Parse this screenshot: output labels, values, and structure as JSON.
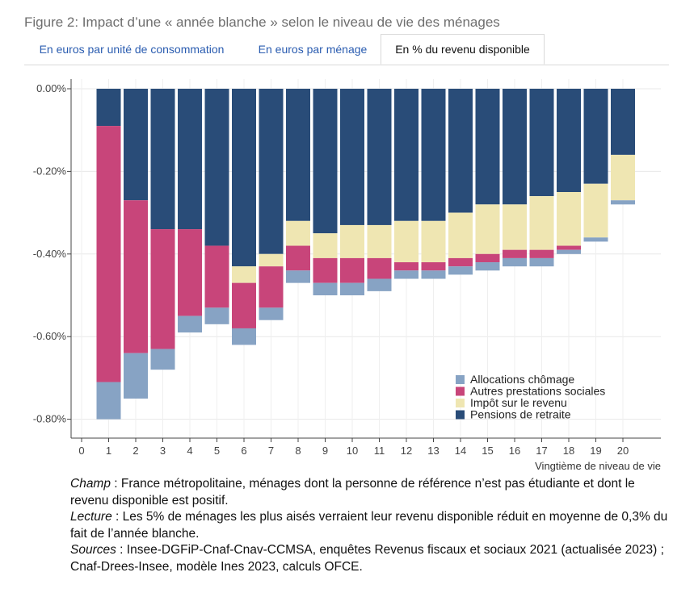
{
  "figure_title": "Figure 2: Impact d’une « année blanche » selon le niveau de vie des ménages",
  "tabs": [
    {
      "label": "En euros par unité de consommation",
      "active": false
    },
    {
      "label": "En euros par ménage",
      "active": false
    },
    {
      "label": "En % du revenu disponible",
      "active": true
    }
  ],
  "colors": {
    "allocations": "#87a3c4",
    "prestations": "#c8457a",
    "impot": "#efe6b2",
    "pensions": "#294c78"
  },
  "chart_data": {
    "type": "bar",
    "stacked": true,
    "title": "",
    "xlabel": "Vingtième de niveau de vie",
    "ylabel": "",
    "x_ticks": [
      "0",
      "1",
      "2",
      "3",
      "4",
      "5",
      "6",
      "7",
      "8",
      "9",
      "10",
      "11",
      "12",
      "13",
      "14",
      "15",
      "16",
      "17",
      "18",
      "19",
      "20"
    ],
    "xlim": [
      0,
      21
    ],
    "y_ticks": [
      "0.00%",
      "-0.20%",
      "-0.40%",
      "-0.60%",
      "-0.80%"
    ],
    "ylim": [
      -0.84,
      0.02
    ],
    "categories": [
      "1",
      "2",
      "3",
      "4",
      "5",
      "6",
      "7",
      "8",
      "9",
      "10",
      "11",
      "12",
      "13",
      "14",
      "15",
      "16",
      "17",
      "18",
      "19",
      "20"
    ],
    "legend_position": "bottom-right",
    "series": [
      {
        "name": "Pensions de retraite",
        "color_key": "pensions",
        "values": [
          -0.09,
          -0.27,
          -0.34,
          -0.34,
          -0.38,
          -0.43,
          -0.4,
          -0.32,
          -0.35,
          -0.33,
          -0.33,
          -0.32,
          -0.32,
          -0.3,
          -0.28,
          -0.28,
          -0.26,
          -0.25,
          -0.23,
          -0.16
        ]
      },
      {
        "name": "Impôt sur le revenu",
        "color_key": "impot",
        "values": [
          0,
          0,
          0,
          0,
          0,
          -0.04,
          -0.03,
          -0.06,
          -0.06,
          -0.08,
          -0.08,
          -0.1,
          -0.1,
          -0.11,
          -0.12,
          -0.11,
          -0.13,
          -0.13,
          -0.13,
          -0.11
        ]
      },
      {
        "name": "Autres prestations sociales",
        "color_key": "prestations",
        "values": [
          -0.62,
          -0.37,
          -0.29,
          -0.21,
          -0.15,
          -0.11,
          -0.1,
          -0.06,
          -0.06,
          -0.06,
          -0.05,
          -0.02,
          -0.02,
          -0.02,
          -0.02,
          -0.02,
          -0.02,
          -0.01,
          0,
          0
        ]
      },
      {
        "name": "Allocations chômage",
        "color_key": "allocations",
        "values": [
          -0.09,
          -0.11,
          -0.05,
          -0.04,
          -0.04,
          -0.04,
          -0.03,
          -0.03,
          -0.03,
          -0.03,
          -0.03,
          -0.02,
          -0.02,
          -0.02,
          -0.02,
          -0.02,
          -0.02,
          -0.01,
          -0.01,
          -0.01
        ]
      }
    ],
    "legend": [
      "Allocations chômage",
      "Autres prestations sociales",
      "Impôt sur le revenu",
      "Pensions de retraite"
    ]
  },
  "notes": {
    "champ_label": "Champ",
    "champ_text": " : France métropolitaine, ménages dont la personne de référence n’est pas étudiante et dont le revenu disponible est positif.",
    "lecture_label": "Lecture",
    "lecture_text": " : Les 5% de ménages les plus aisés verraient leur revenu disponible réduit en moyenne de 0,3% du fait de l’année blanche.",
    "sources_label": "Sources",
    "sources_text": " : Insee-DGFiP-Cnaf-Cnav-CCMSA, enquêtes Revenus fiscaux et sociaux 2021 (actualisée 2023) ; Cnaf-Drees-Insee, modèle Ines 2023, calculs OFCE."
  }
}
